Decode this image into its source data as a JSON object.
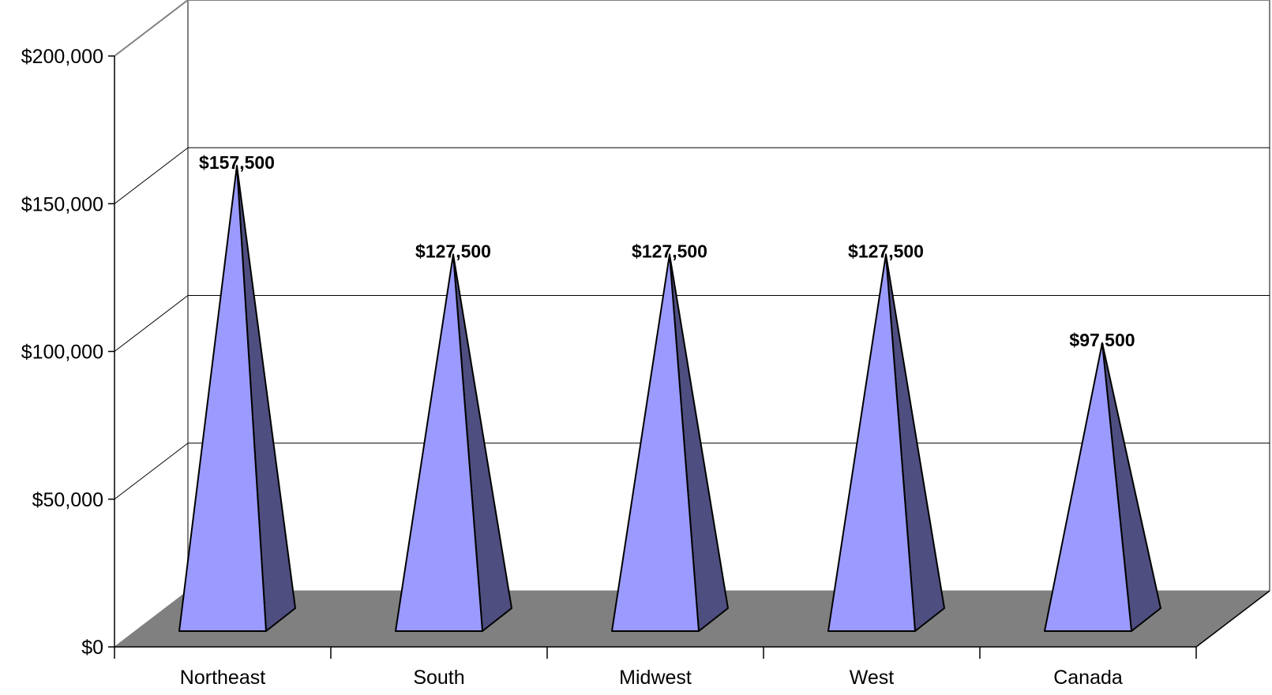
{
  "chart_data": {
    "type": "bar",
    "bar_shape": "pyramid-3d",
    "categories": [
      "Northeast",
      "South",
      "Midwest",
      "West",
      "Canada"
    ],
    "values": [
      157500,
      127500,
      127500,
      127500,
      97500
    ],
    "data_labels": [
      "$157,500",
      "$127,500",
      "$127,500",
      "$127,500",
      "$97,500"
    ],
    "y_ticks": [
      0,
      50000,
      100000,
      150000,
      200000
    ],
    "y_tick_labels": [
      "$0",
      "$50,000",
      "$100,000",
      "$150,000",
      "$200,000"
    ],
    "ylim": [
      0,
      200000
    ],
    "grid": true,
    "legend": false,
    "colors": {
      "front": "#9b9bff",
      "side": "#4e4e80",
      "floor": "#808080",
      "gridline": "#000000",
      "wall": "#808080"
    }
  }
}
